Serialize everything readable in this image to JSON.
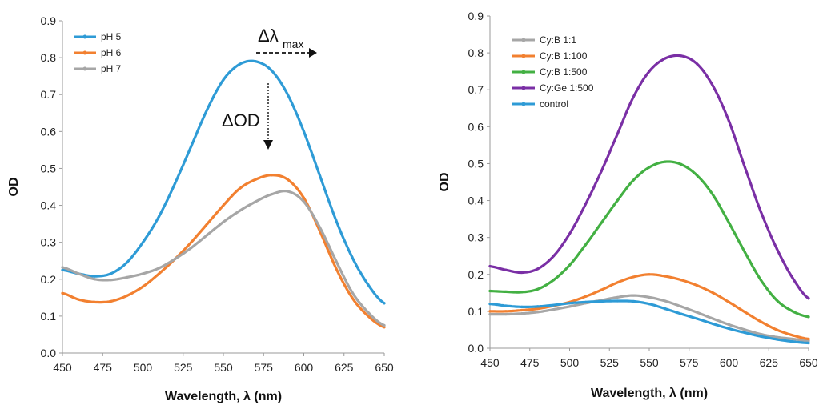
{
  "chart_data": [
    {
      "type": "line",
      "xlabel": "Wavelength, λ (nm)",
      "ylabel": "OD",
      "xlim": [
        450,
        650
      ],
      "ylim": [
        0,
        0.9
      ],
      "xticks": [
        "450",
        "475",
        "500",
        "525",
        "550",
        "575",
        "600",
        "625",
        "650"
      ],
      "yticks": [
        "0.0",
        "0.1",
        "0.2",
        "0.3",
        "0.4",
        "0.5",
        "0.6",
        "0.7",
        "0.8",
        "0.9"
      ],
      "grid": false,
      "legend_position": "top-left",
      "annotations": [
        {
          "text": "Δλ",
          "subscript": "max",
          "arrow": "right"
        },
        {
          "text": "ΔOD",
          "arrow": "down"
        }
      ],
      "series": [
        {
          "name": "pH 5",
          "color": "#2e9bd6",
          "x": [
            450,
            460,
            470,
            480,
            490,
            500,
            510,
            520,
            530,
            540,
            550,
            560,
            570,
            580,
            590,
            600,
            610,
            620,
            630,
            640,
            650
          ],
          "y": [
            0.225,
            0.215,
            0.208,
            0.215,
            0.245,
            0.3,
            0.37,
            0.46,
            0.56,
            0.66,
            0.74,
            0.782,
            0.79,
            0.765,
            0.7,
            0.6,
            0.48,
            0.36,
            0.26,
            0.185,
            0.135
          ]
        },
        {
          "name": "pH 6",
          "color": "#f28030",
          "x": [
            450,
            460,
            470,
            480,
            490,
            500,
            510,
            520,
            530,
            540,
            550,
            560,
            570,
            580,
            590,
            600,
            610,
            620,
            630,
            640,
            650
          ],
          "y": [
            0.162,
            0.145,
            0.138,
            0.14,
            0.155,
            0.18,
            0.215,
            0.255,
            0.3,
            0.35,
            0.4,
            0.445,
            0.47,
            0.482,
            0.47,
            0.42,
            0.33,
            0.23,
            0.15,
            0.1,
            0.07
          ]
        },
        {
          "name": "pH 7",
          "color": "#a6a6a6",
          "x": [
            450,
            460,
            470,
            480,
            490,
            500,
            510,
            520,
            530,
            540,
            550,
            560,
            570,
            580,
            590,
            600,
            610,
            620,
            630,
            640,
            650
          ],
          "y": [
            0.232,
            0.215,
            0.2,
            0.198,
            0.205,
            0.215,
            0.23,
            0.255,
            0.285,
            0.32,
            0.355,
            0.385,
            0.41,
            0.43,
            0.438,
            0.41,
            0.34,
            0.25,
            0.165,
            0.11,
            0.075
          ]
        }
      ]
    },
    {
      "type": "line",
      "xlabel": "Wavelength, λ (nm)",
      "ylabel": "OD",
      "xlim": [
        450,
        650
      ],
      "ylim": [
        0,
        0.9
      ],
      "xticks": [
        "450",
        "475",
        "500",
        "525",
        "550",
        "575",
        "600",
        "625",
        "650"
      ],
      "yticks": [
        "0.0",
        "0.1",
        "0.2",
        "0.3",
        "0.4",
        "0.5",
        "0.6",
        "0.7",
        "0.8",
        "0.9"
      ],
      "grid": false,
      "legend_position": "top-left",
      "series": [
        {
          "name": "Cy:B 1:1",
          "color": "#a6a6a6",
          "x": [
            450,
            460,
            470,
            480,
            490,
            500,
            510,
            520,
            530,
            540,
            550,
            560,
            570,
            580,
            590,
            600,
            610,
            620,
            630,
            640,
            650
          ],
          "y": [
            0.092,
            0.092,
            0.094,
            0.098,
            0.105,
            0.113,
            0.122,
            0.13,
            0.138,
            0.143,
            0.138,
            0.128,
            0.113,
            0.097,
            0.08,
            0.064,
            0.05,
            0.038,
            0.03,
            0.025,
            0.02
          ]
        },
        {
          "name": "Cy:B 1:100",
          "color": "#f28030",
          "x": [
            450,
            460,
            470,
            480,
            490,
            500,
            510,
            520,
            530,
            540,
            550,
            560,
            570,
            580,
            590,
            600,
            610,
            620,
            630,
            640,
            650
          ],
          "y": [
            0.1,
            0.1,
            0.103,
            0.107,
            0.115,
            0.125,
            0.14,
            0.158,
            0.178,
            0.193,
            0.2,
            0.195,
            0.185,
            0.17,
            0.15,
            0.125,
            0.098,
            0.072,
            0.05,
            0.035,
            0.025
          ]
        },
        {
          "name": "Cy:B 1:500",
          "color": "#43b043",
          "x": [
            450,
            460,
            470,
            480,
            490,
            500,
            510,
            520,
            530,
            540,
            550,
            560,
            570,
            580,
            590,
            600,
            610,
            620,
            630,
            640,
            650
          ],
          "y": [
            0.155,
            0.153,
            0.152,
            0.16,
            0.185,
            0.225,
            0.28,
            0.34,
            0.4,
            0.455,
            0.49,
            0.505,
            0.498,
            0.468,
            0.415,
            0.34,
            0.26,
            0.185,
            0.13,
            0.1,
            0.085
          ]
        },
        {
          "name": "Cy:Ge 1:500",
          "color": "#7a2fa5",
          "x": [
            450,
            460,
            470,
            480,
            490,
            500,
            510,
            520,
            530,
            540,
            550,
            560,
            570,
            580,
            590,
            600,
            610,
            620,
            630,
            640,
            650
          ],
          "y": [
            0.222,
            0.212,
            0.205,
            0.215,
            0.25,
            0.31,
            0.39,
            0.48,
            0.58,
            0.68,
            0.75,
            0.785,
            0.792,
            0.77,
            0.71,
            0.615,
            0.49,
            0.37,
            0.27,
            0.19,
            0.135
          ]
        },
        {
          "name": "control",
          "color": "#2e9bd6",
          "x": [
            450,
            460,
            470,
            480,
            490,
            500,
            510,
            520,
            530,
            540,
            550,
            560,
            570,
            580,
            590,
            600,
            610,
            620,
            630,
            640,
            650
          ],
          "y": [
            0.12,
            0.115,
            0.112,
            0.113,
            0.117,
            0.122,
            0.125,
            0.127,
            0.128,
            0.127,
            0.12,
            0.107,
            0.093,
            0.08,
            0.066,
            0.053,
            0.042,
            0.032,
            0.024,
            0.018,
            0.014
          ]
        }
      ]
    }
  ]
}
